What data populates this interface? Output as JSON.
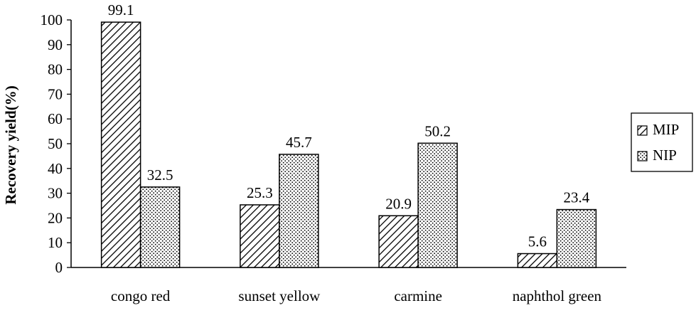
{
  "chart_data": {
    "type": "bar",
    "title": "",
    "xlabel": "",
    "ylabel": "Recovery yield(%)",
    "ylim": [
      0,
      100
    ],
    "yticks": [
      "0",
      "10",
      "20",
      "30",
      "40",
      "50",
      "60",
      "70",
      "80",
      "90",
      "100"
    ],
    "categories": [
      "congo red",
      "sunset yellow",
      "carmine",
      "naphthol green"
    ],
    "series": [
      {
        "name": "MIP",
        "values": [
          99.1,
          25.3,
          20.9,
          5.6
        ],
        "labels": [
          "99.1",
          "25.3",
          "20.9",
          "5.6"
        ],
        "pattern": "diagonal-hatch"
      },
      {
        "name": "NIP",
        "values": [
          32.5,
          45.7,
          50.2,
          23.4
        ],
        "labels": [
          "32.5",
          "45.7",
          "50.2",
          "23.4"
        ],
        "pattern": "dots"
      }
    ],
    "legend_position": "right",
    "grid": false,
    "colors": {
      "bar_stroke": "#000000",
      "background": "#ffffff"
    }
  }
}
